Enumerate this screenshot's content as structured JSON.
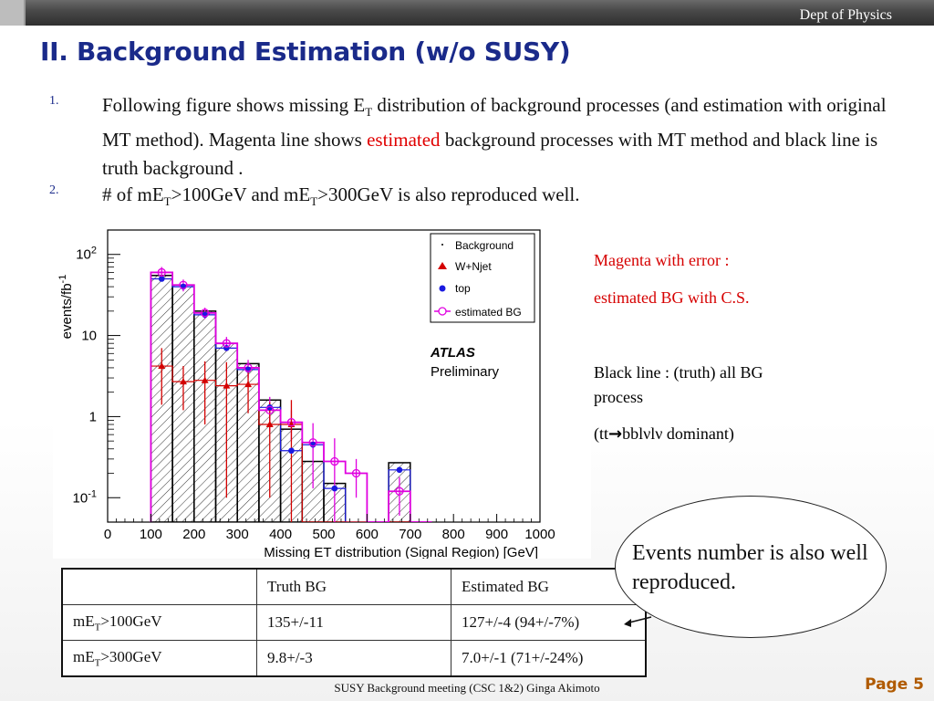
{
  "header": {
    "dept": "Dept of Physics"
  },
  "slide": {
    "title": "II. Background Estimation (w/o SUSY)",
    "items": [
      {
        "num": "1.",
        "part1": "Following figure shows missing E",
        "sub1": "T",
        "part2": " distribution of background processes (and estimation with original MT method). Magenta line shows ",
        "highlight": "estimated",
        "part3": " background processes with MT method and black line is truth background ."
      },
      {
        "num": "2.",
        "a": "# of mE",
        "sub_a": "T",
        "b": ">100GeV and mE",
        "sub_b": "T",
        "c": ">300GeV is also reproduced well."
      }
    ],
    "notes": {
      "magenta1": "Magenta with error :",
      "magenta2": "estimated BG with C.S.",
      "black1": "Black line : (truth) all BG",
      "black2": "process",
      "black3a": " (tt",
      "black3_arrow": "→",
      "black3b": "bblνlν dominant)"
    },
    "callout": "Events number is also well reproduced.",
    "table": {
      "header": [
        "",
        "Truth BG",
        "Estimated BG"
      ],
      "rows": [
        {
          "label_a": "mE",
          "label_sub": "T",
          "label_b": ">100GeV",
          "truth": "135+/-11",
          "estimated": "127+/-4 (94+/-7%)"
        },
        {
          "label_a": "mE",
          "label_sub": "T",
          "label_b": ">300GeV",
          "truth": "9.8+/-3",
          "estimated": "7.0+/-1 (71+/-24%)"
        }
      ]
    },
    "footer": "SUSY Background meeting  (CSC 1&2) Ginga Akimoto",
    "page": "Page 5"
  },
  "chart_data": {
    "type": "histogram",
    "ylabel_main": "events/fb",
    "ylabel_sup": "-1",
    "xlabel": "Missing  ET distribution (Signal Region) [GeV]",
    "xlim": [
      0,
      1000
    ],
    "ylim": [
      0.05,
      200
    ],
    "yscale": "log",
    "xticks": [
      "0",
      "100",
      "200",
      "300",
      "400",
      "500",
      "600",
      "700",
      "800",
      "900",
      "1000"
    ],
    "ytick_labels": {
      "main": [
        "10",
        "10",
        "1",
        "10"
      ],
      "sup": [
        "2",
        "",
        "",
        "-1"
      ]
    },
    "bin_edges": [
      100,
      150,
      200,
      250,
      300,
      350,
      400,
      450,
      500,
      550,
      600,
      650,
      700,
      750
    ],
    "series": [
      {
        "name": "Background",
        "values": [
          55,
          42,
          20,
          8,
          4.5,
          1.6,
          0.7,
          0.28,
          0.15,
          0.05,
          0.05,
          0.27,
          0.05
        ]
      },
      {
        "name": "W+Njet",
        "values": [
          4.2,
          2.7,
          2.8,
          2.4,
          2.5,
          0.8,
          0.8,
          0.05,
          0.05,
          0.05,
          0.05,
          0.05,
          0.05
        ],
        "errors": [
          2.8,
          1.5,
          2.0,
          2.3,
          1.4,
          0.7,
          0.8,
          0.05,
          0.05,
          0.05,
          0.05,
          0.05,
          0.05
        ]
      },
      {
        "name": "top",
        "values": [
          50,
          40,
          18,
          7,
          3.8,
          1.3,
          0.38,
          0.45,
          0.13,
          0.05,
          0.05,
          0.22,
          0.05
        ]
      },
      {
        "name": "estimated BG",
        "values": [
          60,
          42,
          19,
          8,
          4,
          1.2,
          0.85,
          0.48,
          0.28,
          0.2,
          0.05,
          0.12,
          0.05
        ],
        "errors": [
          10,
          7,
          3,
          1.6,
          1.0,
          0.55,
          0.35,
          0.35,
          0.26,
          0.1,
          0.05,
          0.06,
          0.05
        ]
      }
    ],
    "legend": {
      "position": "top-right",
      "items": [
        "Background",
        "W+Njet",
        "top",
        "estimated BG"
      ]
    },
    "labels": {
      "atlas": "ATLAS",
      "preliminary": "Preliminary"
    },
    "colors": {
      "truth": "#000000",
      "wjet": "#d40000",
      "top": "#1a1ae0",
      "estimated": "#e000e0"
    }
  }
}
